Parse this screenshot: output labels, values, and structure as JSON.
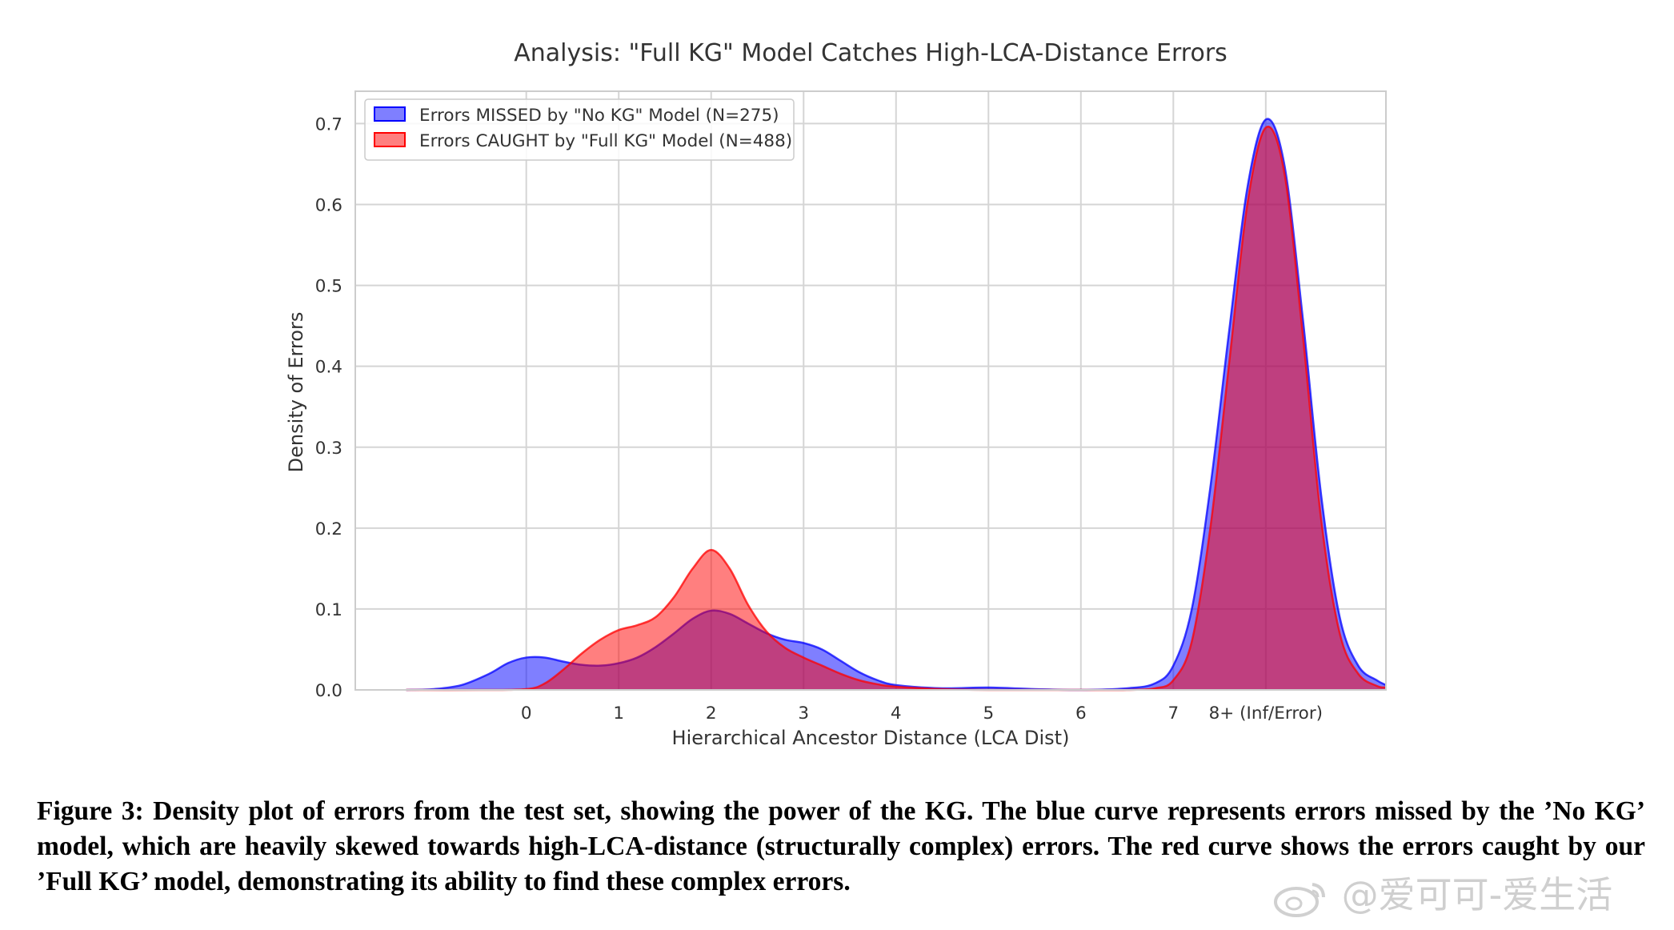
{
  "chart_data": {
    "type": "area",
    "title": "Analysis: \"Full KG\" Model Catches High-LCA-Distance Errors",
    "xlabel": "Hierarchical Ancestor Distance (LCA Dist)",
    "ylabel": "Density of Errors",
    "xlim": [
      -1.85,
      9.3
    ],
    "ylim": [
      0,
      0.74
    ],
    "xticks": [
      0,
      1,
      2,
      3,
      4,
      5,
      6,
      7,
      8
    ],
    "xtick_labels": [
      "0",
      "1",
      "2",
      "3",
      "4",
      "5",
      "6",
      "7",
      "8+ (Inf/Error)"
    ],
    "yticks": [
      0.0,
      0.1,
      0.2,
      0.3,
      0.4,
      0.5,
      0.6,
      0.7
    ],
    "ytick_labels": [
      "0.0",
      "0.1",
      "0.2",
      "0.3",
      "0.4",
      "0.5",
      "0.6",
      "0.7"
    ],
    "grid": true,
    "legend_position": "top-left",
    "series": [
      {
        "name": "Errors MISSED by \"No KG\" Model (N=275)",
        "color": "#0000ff",
        "x": [
          -1.3,
          -1.0,
          -0.7,
          -0.4,
          -0.2,
          0.0,
          0.2,
          0.4,
          0.6,
          0.8,
          1.0,
          1.2,
          1.4,
          1.6,
          1.8,
          2.0,
          2.2,
          2.4,
          2.6,
          2.8,
          3.0,
          3.2,
          3.4,
          3.6,
          3.8,
          4.0,
          4.5,
          5.0,
          5.5,
          6.0,
          6.5,
          6.8,
          7.0,
          7.2,
          7.4,
          7.6,
          7.8,
          8.0,
          8.2,
          8.4,
          8.6,
          8.8,
          9.0,
          9.2,
          9.3
        ],
        "y": [
          0.0,
          0.001,
          0.006,
          0.02,
          0.033,
          0.04,
          0.04,
          0.035,
          0.031,
          0.03,
          0.033,
          0.04,
          0.053,
          0.07,
          0.088,
          0.098,
          0.094,
          0.082,
          0.07,
          0.062,
          0.058,
          0.05,
          0.036,
          0.022,
          0.012,
          0.006,
          0.002,
          0.003,
          0.001,
          0.0,
          0.002,
          0.008,
          0.03,
          0.1,
          0.25,
          0.44,
          0.62,
          0.705,
          0.65,
          0.46,
          0.24,
          0.09,
          0.03,
          0.012,
          0.006
        ]
      },
      {
        "name": "Errors CAUGHT by \"Full KG\" Model (N=488)",
        "color": "#ff0000",
        "x": [
          -1.3,
          -0.5,
          0.0,
          0.2,
          0.4,
          0.6,
          0.8,
          1.0,
          1.2,
          1.4,
          1.6,
          1.8,
          2.0,
          2.2,
          2.4,
          2.6,
          2.8,
          3.0,
          3.2,
          3.4,
          3.6,
          3.8,
          4.0,
          4.5,
          5.0,
          5.5,
          6.0,
          6.5,
          6.8,
          7.0,
          7.2,
          7.4,
          7.6,
          7.8,
          8.0,
          8.2,
          8.4,
          8.6,
          8.8,
          9.0,
          9.2,
          9.3
        ],
        "y": [
          0.0,
          0.0,
          0.001,
          0.008,
          0.025,
          0.045,
          0.062,
          0.074,
          0.08,
          0.09,
          0.115,
          0.15,
          0.173,
          0.15,
          0.105,
          0.072,
          0.052,
          0.04,
          0.03,
          0.02,
          0.012,
          0.007,
          0.004,
          0.001,
          0.0,
          0.0,
          0.0,
          0.0,
          0.002,
          0.012,
          0.06,
          0.2,
          0.4,
          0.6,
          0.695,
          0.64,
          0.44,
          0.21,
          0.07,
          0.02,
          0.005,
          0.003
        ]
      }
    ]
  },
  "caption": "Figure 3: Density plot of errors from the test set, showing the power of the KG. The blue curve represents errors missed by the ’No KG’ model, which are heavily skewed towards high-LCA-distance (structurally complex) errors. The red curve shows the errors caught by our ’Full KG’ model, demonstrating its ability to find these complex errors.",
  "watermark": "@爱可可-爱生活"
}
